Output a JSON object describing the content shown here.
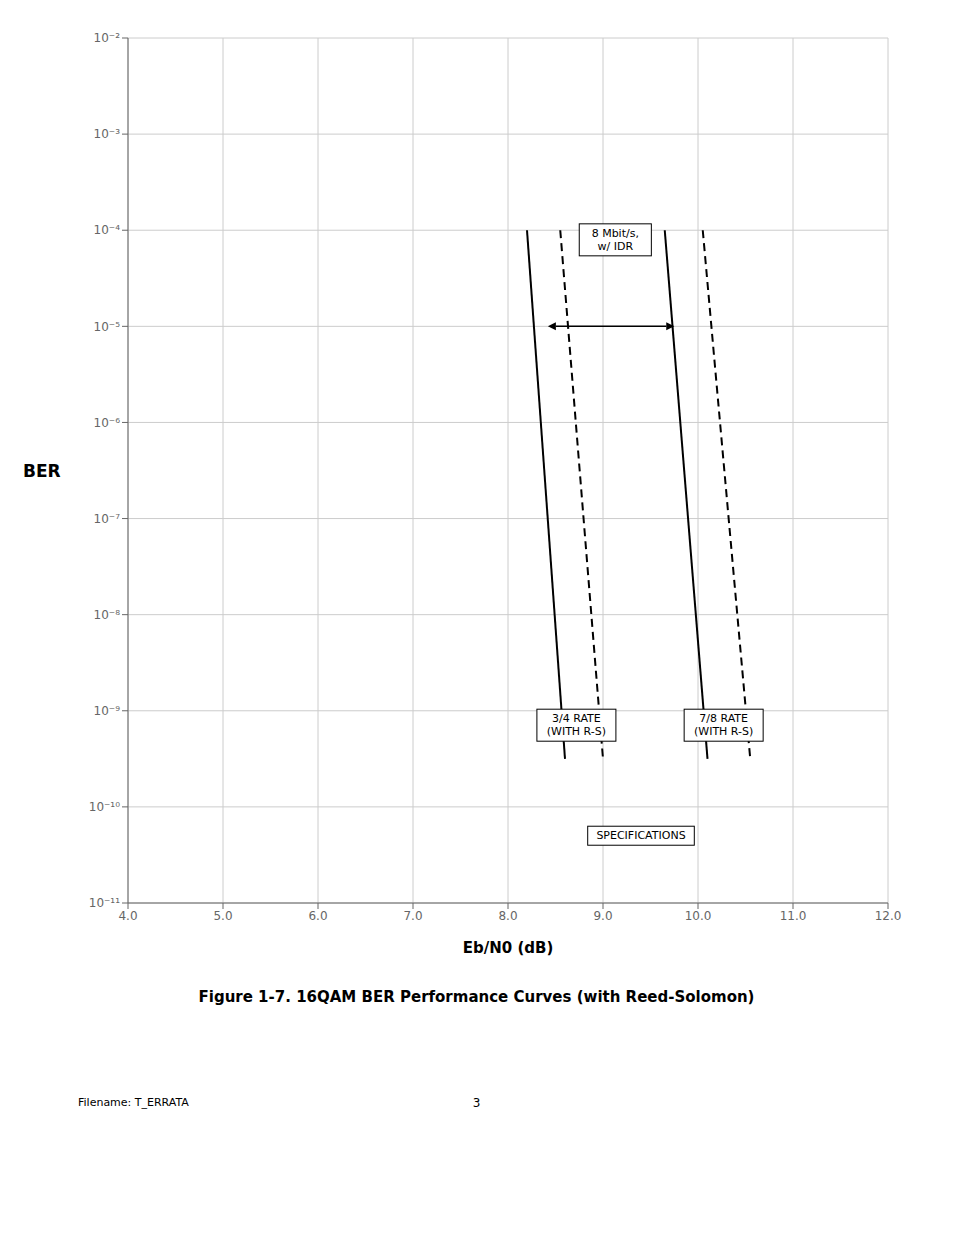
{
  "chart_data": {
    "type": "line",
    "title": "Figure 1-7.  16QAM BER Performance Curves (with Reed-Solomon)",
    "xlabel": "Eb/N0 (dB)",
    "ylabel": "BER",
    "log": "y",
    "grid": true,
    "xlim": [
      4.0,
      12.0
    ],
    "xticks": [
      {
        "value": 4,
        "label": "4.0"
      },
      {
        "value": 5,
        "label": "5.0"
      },
      {
        "value": 6,
        "label": "6.0"
      },
      {
        "value": 7,
        "label": "7.0"
      },
      {
        "value": 8,
        "label": "8.0"
      },
      {
        "value": 9,
        "label": "9.0"
      },
      {
        "value": 10,
        "label": "10.0"
      },
      {
        "value": 11,
        "label": "11.0"
      },
      {
        "value": 12,
        "label": "12.0"
      }
    ],
    "ylim": [
      1e-11,
      0.01
    ],
    "yticks": [
      {
        "value": 0.01,
        "label": "10⁻²"
      },
      {
        "value": 0.001,
        "label": "10⁻³"
      },
      {
        "value": 0.0001,
        "label": "10⁻⁴"
      },
      {
        "value": 1e-05,
        "label": "10⁻⁵"
      },
      {
        "value": 1e-06,
        "label": "10⁻⁶"
      },
      {
        "value": 1e-07,
        "label": "10⁻⁷"
      },
      {
        "value": 1e-08,
        "label": "10⁻⁸"
      },
      {
        "value": 1e-09,
        "label": "10⁻⁹"
      },
      {
        "value": 1e-10,
        "label": "10⁻¹⁰"
      },
      {
        "value": 1e-11,
        "label": "10⁻¹¹"
      }
    ],
    "series": [
      {
        "x": [
          8.2,
          8.6
        ],
        "values": [
          0.0001,
          3.1622776601683795e-10
        ],
        "line_style": "solid",
        "color": "#000000"
      },
      {
        "x": [
          8.55,
          9.0
        ],
        "values": [
          0.0001,
          3.1622776601683795e-10
        ],
        "line_style": "dashed",
        "color": "#000000"
      },
      {
        "x": [
          9.65,
          10.1
        ],
        "values": [
          0.0001,
          3.1622776601683795e-10
        ],
        "line_style": "solid",
        "color": "#000000"
      },
      {
        "x": [
          10.05,
          10.55
        ],
        "values": [
          0.0001,
          3.1622776601683795e-10
        ],
        "line_style": "dashed",
        "color": "#000000"
      }
    ],
    "annotations": [
      {
        "text": "8 Mbit/s,\nw/ IDR",
        "x": 8.75,
        "y": 7.943282347242815e-05,
        "align": "left"
      },
      {
        "text": "3/4 RATE\n(WITH R-S)",
        "x": 8.72,
        "y": 7.079457843841373e-10,
        "align": "center"
      },
      {
        "text": "7/8 RATE\n(WITH R-S)",
        "x": 10.27,
        "y": 7.079457843841373e-10,
        "align": "center"
      },
      {
        "text": "SPECIFICATIONS",
        "x": 9.4,
        "y": 5.011872336272715e-11,
        "align": "center"
      }
    ],
    "arrows": [
      {
        "x": [
          8.42,
          9.75
        ],
        "y": 1e-05
      }
    ],
    "footer": {
      "left": "Filename: T_ERRATA",
      "center": "3"
    }
  }
}
